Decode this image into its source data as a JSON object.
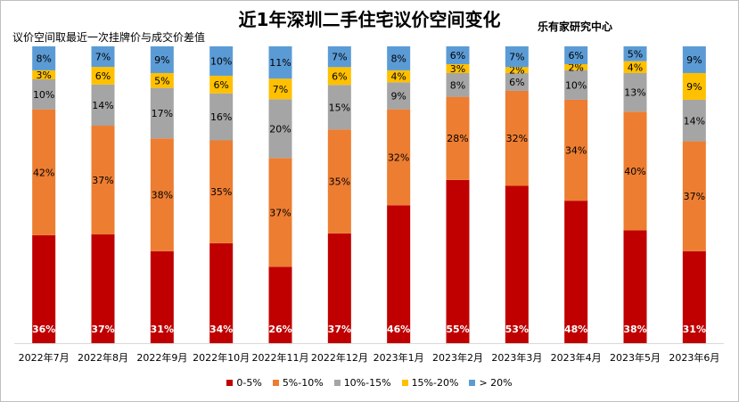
{
  "chart_data": {
    "type": "bar",
    "stacked": true,
    "title": "近1年深圳二手住宅议价空间变化",
    "subtitle": "议价空间取最近一次挂牌价与成交价差值",
    "source": "乐有家研究中心",
    "categories": [
      "2022年7月",
      "2022年8月",
      "2022年9月",
      "2022年10月",
      "2022年11月",
      "2022年12月",
      "2023年1月",
      "2023年2月",
      "2023年3月",
      "2023年4月",
      "2023年5月",
      "2023年6月"
    ],
    "series": [
      {
        "name": "0-5%",
        "color": "#c00000",
        "label_color": "#ffffff",
        "values": [
          36,
          37,
          31,
          34,
          26,
          37,
          46,
          55,
          53,
          48,
          38,
          31
        ]
      },
      {
        "name": "5%-10%",
        "color": "#ed7d31",
        "label_color": "#000000",
        "values": [
          42,
          37,
          38,
          35,
          37,
          35,
          32,
          28,
          32,
          34,
          40,
          37
        ]
      },
      {
        "name": "10%-15%",
        "color": "#a5a5a5",
        "label_color": "#000000",
        "values": [
          10,
          14,
          17,
          16,
          20,
          15,
          9,
          8,
          6,
          10,
          13,
          14
        ]
      },
      {
        "name": "15%-20%",
        "color": "#ffc000",
        "label_color": "#000000",
        "values": [
          3,
          6,
          5,
          6,
          7,
          6,
          4,
          3,
          2,
          2,
          4,
          9
        ]
      },
      {
        "name": "> 20%",
        "color": "#5b9bd5",
        "label_color": "#000000",
        "values": [
          8,
          7,
          9,
          10,
          11,
          7,
          8,
          6,
          7,
          6,
          5,
          9
        ]
      }
    ],
    "value_suffix": "%",
    "legend_position": "bottom",
    "grid": false
  }
}
